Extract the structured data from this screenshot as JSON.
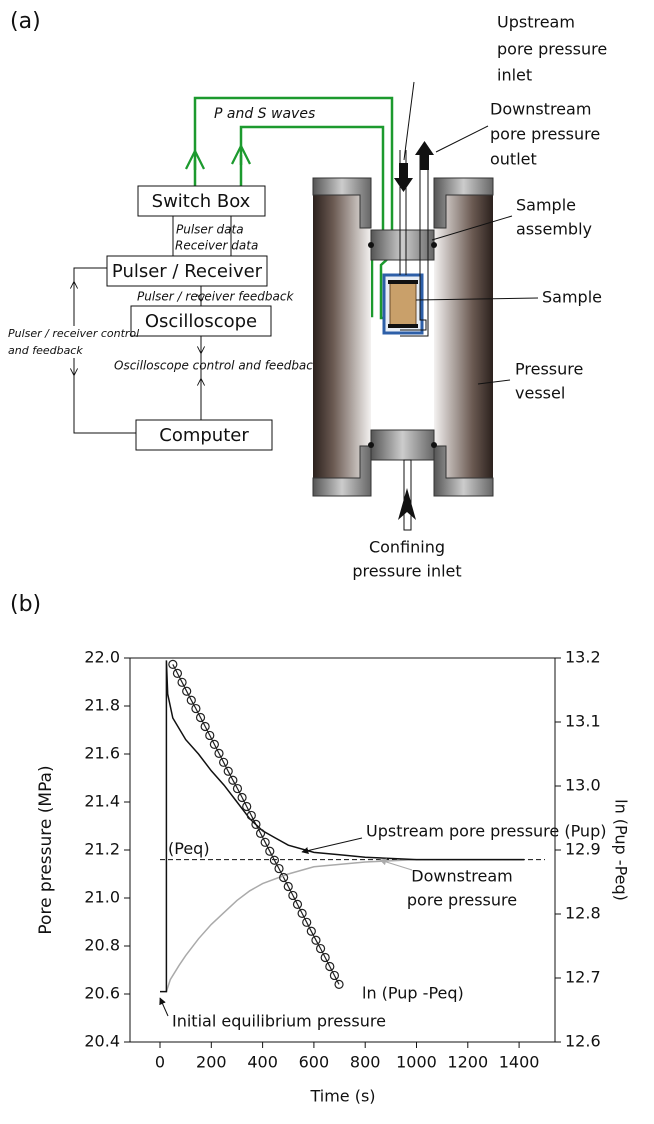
{
  "diagram": {
    "panel_label": "(a)",
    "upstream_inlet": [
      "Upstream",
      "pore pressure",
      "inlet"
    ],
    "downstream_outlet": [
      "Downstream",
      "pore pressure",
      "outlet"
    ],
    "waves": "P and S waves",
    "switch_box": "Switch Box",
    "pulser_data": "Pulser data",
    "receiver_data": "Receiver data",
    "pulser_receiver": "Pulser / Receiver",
    "pulser_feedback": "Pulser / receiver feedback",
    "oscilloscope": "Oscilloscope",
    "pulser_control": [
      "Pulser / receiver control",
      "and feedback"
    ],
    "oscilloscope_control": "Oscilloscope control and feedback",
    "computer": "Computer",
    "sample_assembly": [
      "Sample",
      "assembly"
    ],
    "sample": "Sample",
    "pressure_vessel": [
      "Pressure",
      "vessel"
    ],
    "confining_inlet": [
      "Confining",
      "pressure inlet"
    ]
  },
  "chart_data": {
    "type": "line",
    "panel_label": "(b)",
    "x_label": "Time (s)",
    "y_label": "Pore pressure (MPa)",
    "y2_label": "ln (Pup -Peq)",
    "xlim": [
      -117,
      1540
    ],
    "xticks": [
      0,
      200,
      400,
      600,
      800,
      1000,
      1200,
      1400
    ],
    "ylim": [
      20.4,
      22.0
    ],
    "yticks": [
      20.4,
      20.6,
      20.8,
      {
        "value": 21.0,
        "label": "21.0"
      },
      21.2,
      21.4,
      21.6,
      21.8,
      {
        "value": 22.0,
        "label": "22.0"
      }
    ],
    "y2lim": [
      12.6,
      13.2
    ],
    "y2ticks": [
      12.6,
      12.7,
      12.8,
      12.9,
      {
        "value": 13.0,
        "label": "13.0"
      },
      13.1,
      13.2
    ],
    "series": [
      {
        "color": "#111111",
        "x": [
          0,
          25,
          25,
          30,
          50,
          100,
          150,
          200,
          250,
          300,
          350,
          400,
          450,
          500,
          600,
          700,
          800,
          1000,
          1200,
          1420
        ],
        "values": [
          20.61,
          20.61,
          21.99,
          21.85,
          21.75,
          21.66,
          21.6,
          21.53,
          21.47,
          21.4,
          21.33,
          21.28,
          21.25,
          21.22,
          21.19,
          21.18,
          21.17,
          21.16,
          21.16,
          21.16
        ]
      },
      {
        "color": "#aaaaaa",
        "x": [
          25,
          40,
          75,
          100,
          150,
          200,
          250,
          300,
          350,
          400,
          500,
          600,
          700,
          800,
          1000,
          1200,
          1420
        ],
        "values": [
          20.61,
          20.66,
          20.72,
          20.76,
          20.83,
          20.89,
          20.94,
          20.99,
          21.03,
          21.06,
          21.1,
          21.13,
          21.14,
          21.15,
          21.16,
          21.16,
          21.16
        ]
      },
      {
        "color": "#222222",
        "axis": "y2",
        "marker": "circle",
        "x": [
          50,
          68,
          86,
          104,
          122,
          140,
          158,
          176,
          194,
          212,
          230,
          248,
          266,
          284,
          302,
          320,
          338,
          356,
          374,
          392,
          410,
          428,
          446,
          464,
          482,
          500,
          518,
          536,
          554,
          572,
          590,
          608,
          626,
          644,
          662,
          680,
          698
        ],
        "values": [
          13.19,
          13.176,
          13.162,
          13.148,
          13.134,
          13.121,
          13.107,
          13.093,
          13.079,
          13.065,
          13.051,
          13.037,
          13.023,
          13.009,
          12.996,
          12.982,
          12.968,
          12.954,
          12.94,
          12.926,
          12.912,
          12.898,
          12.884,
          12.871,
          12.857,
          12.843,
          12.829,
          12.815,
          12.801,
          12.787,
          12.773,
          12.759,
          12.746,
          12.732,
          12.718,
          12.704,
          12.69
        ]
      }
    ],
    "hline": {
      "value": 21.16,
      "label": "(Peq)",
      "dash": true
    },
    "annotations": [
      {
        "text": "Upstream pore pressure (Pup)"
      },
      {
        "text": "Downstream"
      },
      {
        "text": "pore pressure"
      },
      {
        "text": "ln (Pup -Peq)"
      },
      {
        "text": "Initial equilibrium pressure"
      }
    ]
  }
}
